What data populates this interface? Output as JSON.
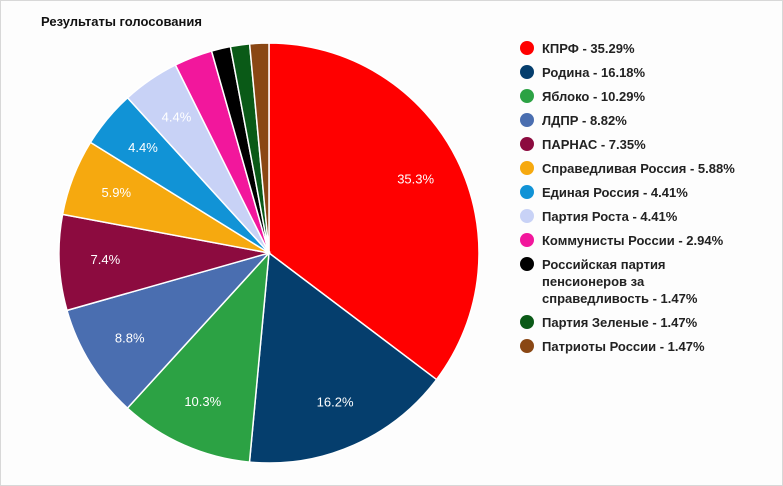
{
  "chart_data": {
    "type": "pie",
    "title": "Результаты голосования",
    "categories": [
      "КПРФ - 35.29%",
      "Родина - 16.18%",
      "Яблоко - 10.29%",
      "ЛДПР - 8.82%",
      "ПАРНАС - 7.35%",
      "Справедливая Россия - 5.88%",
      "Единая Россия - 4.41%",
      "Партия Роста - 4.41%",
      "Коммунисты России - 2.94%",
      "Российская партия пенсионеров за справедливость - 1.47%",
      "Партия Зеленые - 1.47%",
      "Патриоты России - 1.47%"
    ],
    "values": [
      35.29,
      16.18,
      10.29,
      8.82,
      7.35,
      5.88,
      4.41,
      4.41,
      2.94,
      1.47,
      1.47,
      1.47
    ],
    "value_labels": [
      "35.3%",
      "16.2%",
      "10.3%",
      "8.8%",
      "7.4%",
      "5.9%",
      "4.4%",
      "4.4%",
      null,
      null,
      null,
      null
    ],
    "colors": [
      "#ff0000",
      "#053e6d",
      "#2ca244",
      "#4a6eb0",
      "#8c0b3f",
      "#f6a90f",
      "#1193d6",
      "#c8d2f6",
      "#f2179c",
      "#000000",
      "#0a5a17",
      "#8a4714"
    ],
    "legend": "right"
  }
}
